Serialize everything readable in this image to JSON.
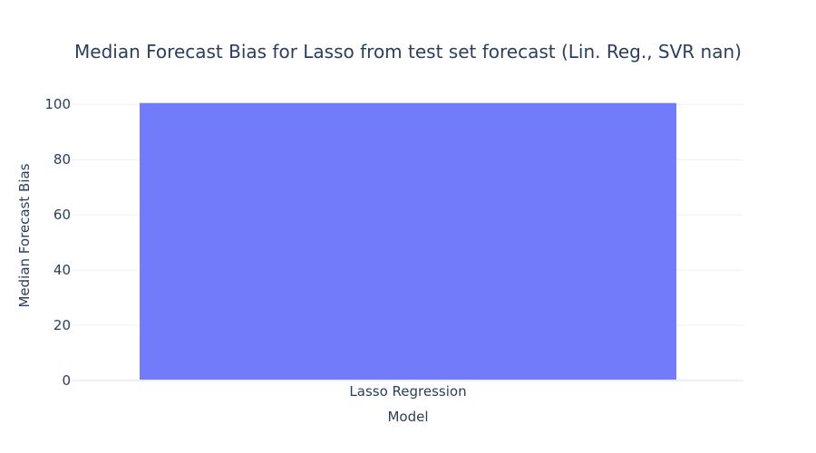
{
  "chart_data": {
    "type": "bar",
    "title": "Median Forecast Bias for Lasso from test set forecast (Lin. Reg., SVR nan)",
    "xlabel": "Model",
    "ylabel": "Median Forecast Bias",
    "categories": [
      "Lasso Regression"
    ],
    "values": [
      100.5
    ],
    "ylim": [
      0,
      105
    ],
    "yticks": [
      0,
      20,
      40,
      60,
      80,
      100
    ],
    "grid": true,
    "bar_color": "#636efa",
    "bar_opacity": 0.9
  }
}
